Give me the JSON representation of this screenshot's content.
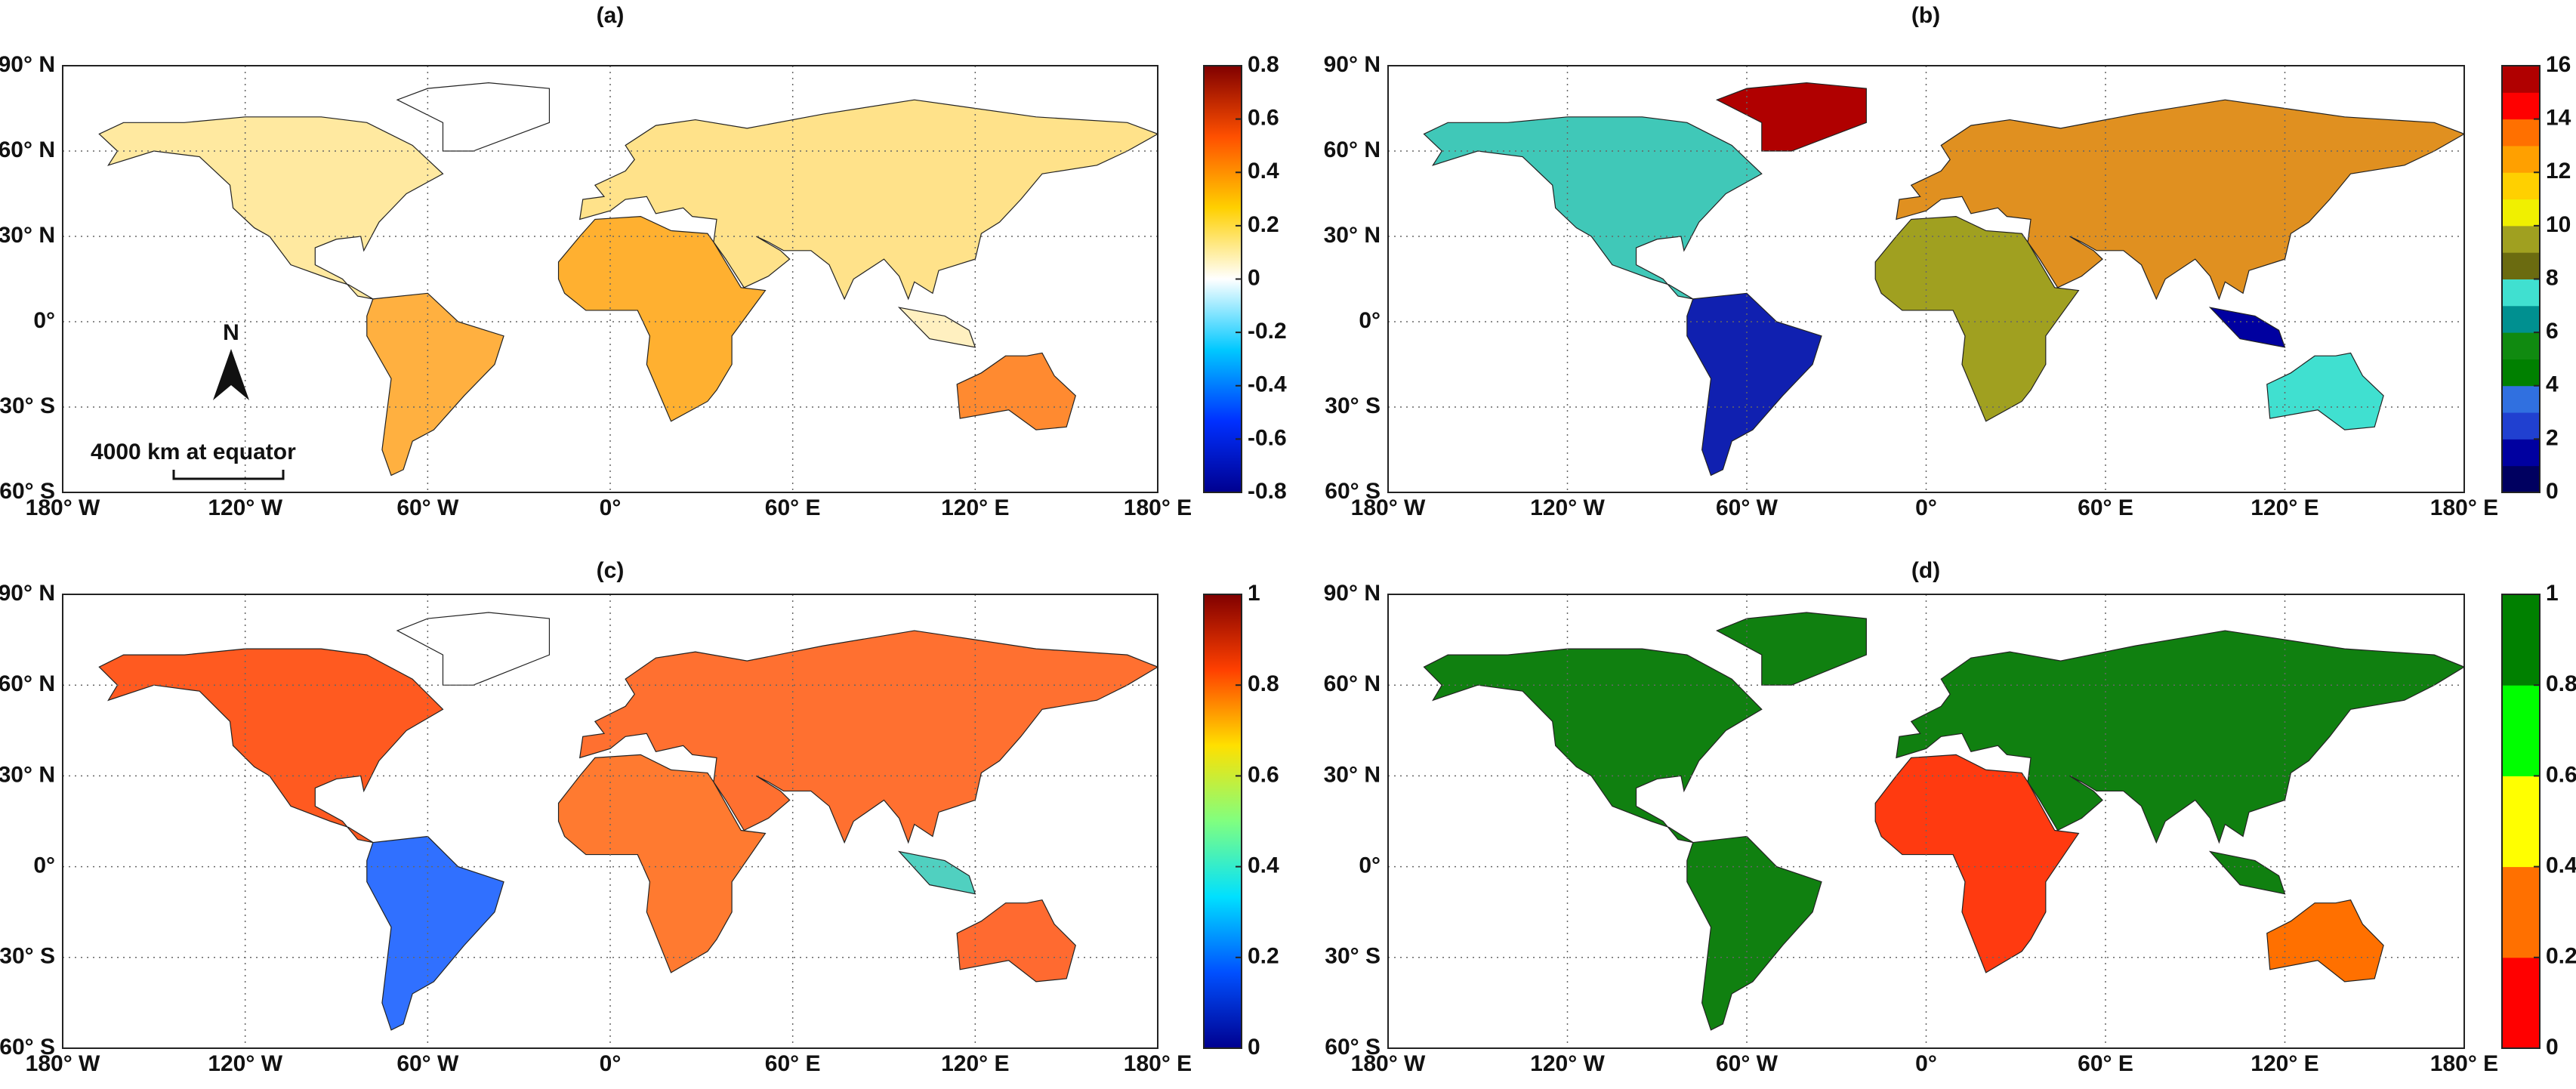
{
  "panels": [
    {
      "title": "(a)",
      "discrete": false,
      "colors": [
        "#00008f",
        "#0030ff",
        "#00c8ff",
        "#ffffff",
        "#ffd000",
        "#ff5000",
        "#800000"
      ],
      "clim": [
        -0.8,
        0.8
      ],
      "cticks": [
        -0.8,
        -0.6,
        -0.4,
        -0.2,
        0,
        0.2,
        0.4,
        0.6,
        0.8
      ]
    },
    {
      "title": "(b)",
      "discrete": true,
      "colors": [
        "#000060",
        "#0000a0",
        "#2040d0",
        "#3070e0",
        "#008000",
        "#108a10",
        "#009090",
        "#40e0d0",
        "#6b6b10",
        "#a0a020",
        "#f0f000",
        "#ffd000",
        "#ffa000",
        "#ff7000",
        "#ff0000",
        "#b00000"
      ],
      "clim": [
        0,
        16
      ],
      "cticks": [
        0,
        2,
        4,
        6,
        8,
        10,
        12,
        14,
        16
      ]
    },
    {
      "title": "(c)",
      "discrete": false,
      "colors": [
        "#00008f",
        "#0050ff",
        "#00e0ff",
        "#80ff80",
        "#ffe000",
        "#ff4000",
        "#800000"
      ],
      "clim": [
        0,
        1
      ],
      "cticks": [
        0,
        0.2,
        0.4,
        0.6,
        0.8,
        1
      ]
    },
    {
      "title": "(d)",
      "discrete": true,
      "colors": [
        "#ff0000",
        "#ff7000",
        "#ffff00",
        "#00ff00",
        "#008000"
      ],
      "clim": [
        0,
        1
      ],
      "cticks": [
        0,
        0.2,
        0.4,
        0.6,
        0.8,
        1
      ]
    }
  ],
  "map": {
    "xlim": [
      -180,
      180
    ],
    "ylim": [
      -60,
      90
    ],
    "xticks": [
      {
        "value": -180,
        "label": "180° W"
      },
      {
        "value": -120,
        "label": "120° W"
      },
      {
        "value": -60,
        "label": "60° W"
      },
      {
        "value": 0,
        "label": "0°"
      },
      {
        "value": 60,
        "label": "60° E"
      },
      {
        "value": 120,
        "label": "120° E"
      },
      {
        "value": 180,
        "label": "180° E"
      }
    ],
    "yticks": [
      {
        "value": 90,
        "label": "90° N"
      },
      {
        "value": 60,
        "label": "60° N"
      },
      {
        "value": 30,
        "label": "30° N"
      },
      {
        "value": 0,
        "label": "0°"
      },
      {
        "value": -30,
        "label": "30° S"
      },
      {
        "value": -60,
        "label": "60° S"
      }
    ]
  },
  "annotations": {
    "north": "N",
    "scale": "4000 km at equator"
  }
}
